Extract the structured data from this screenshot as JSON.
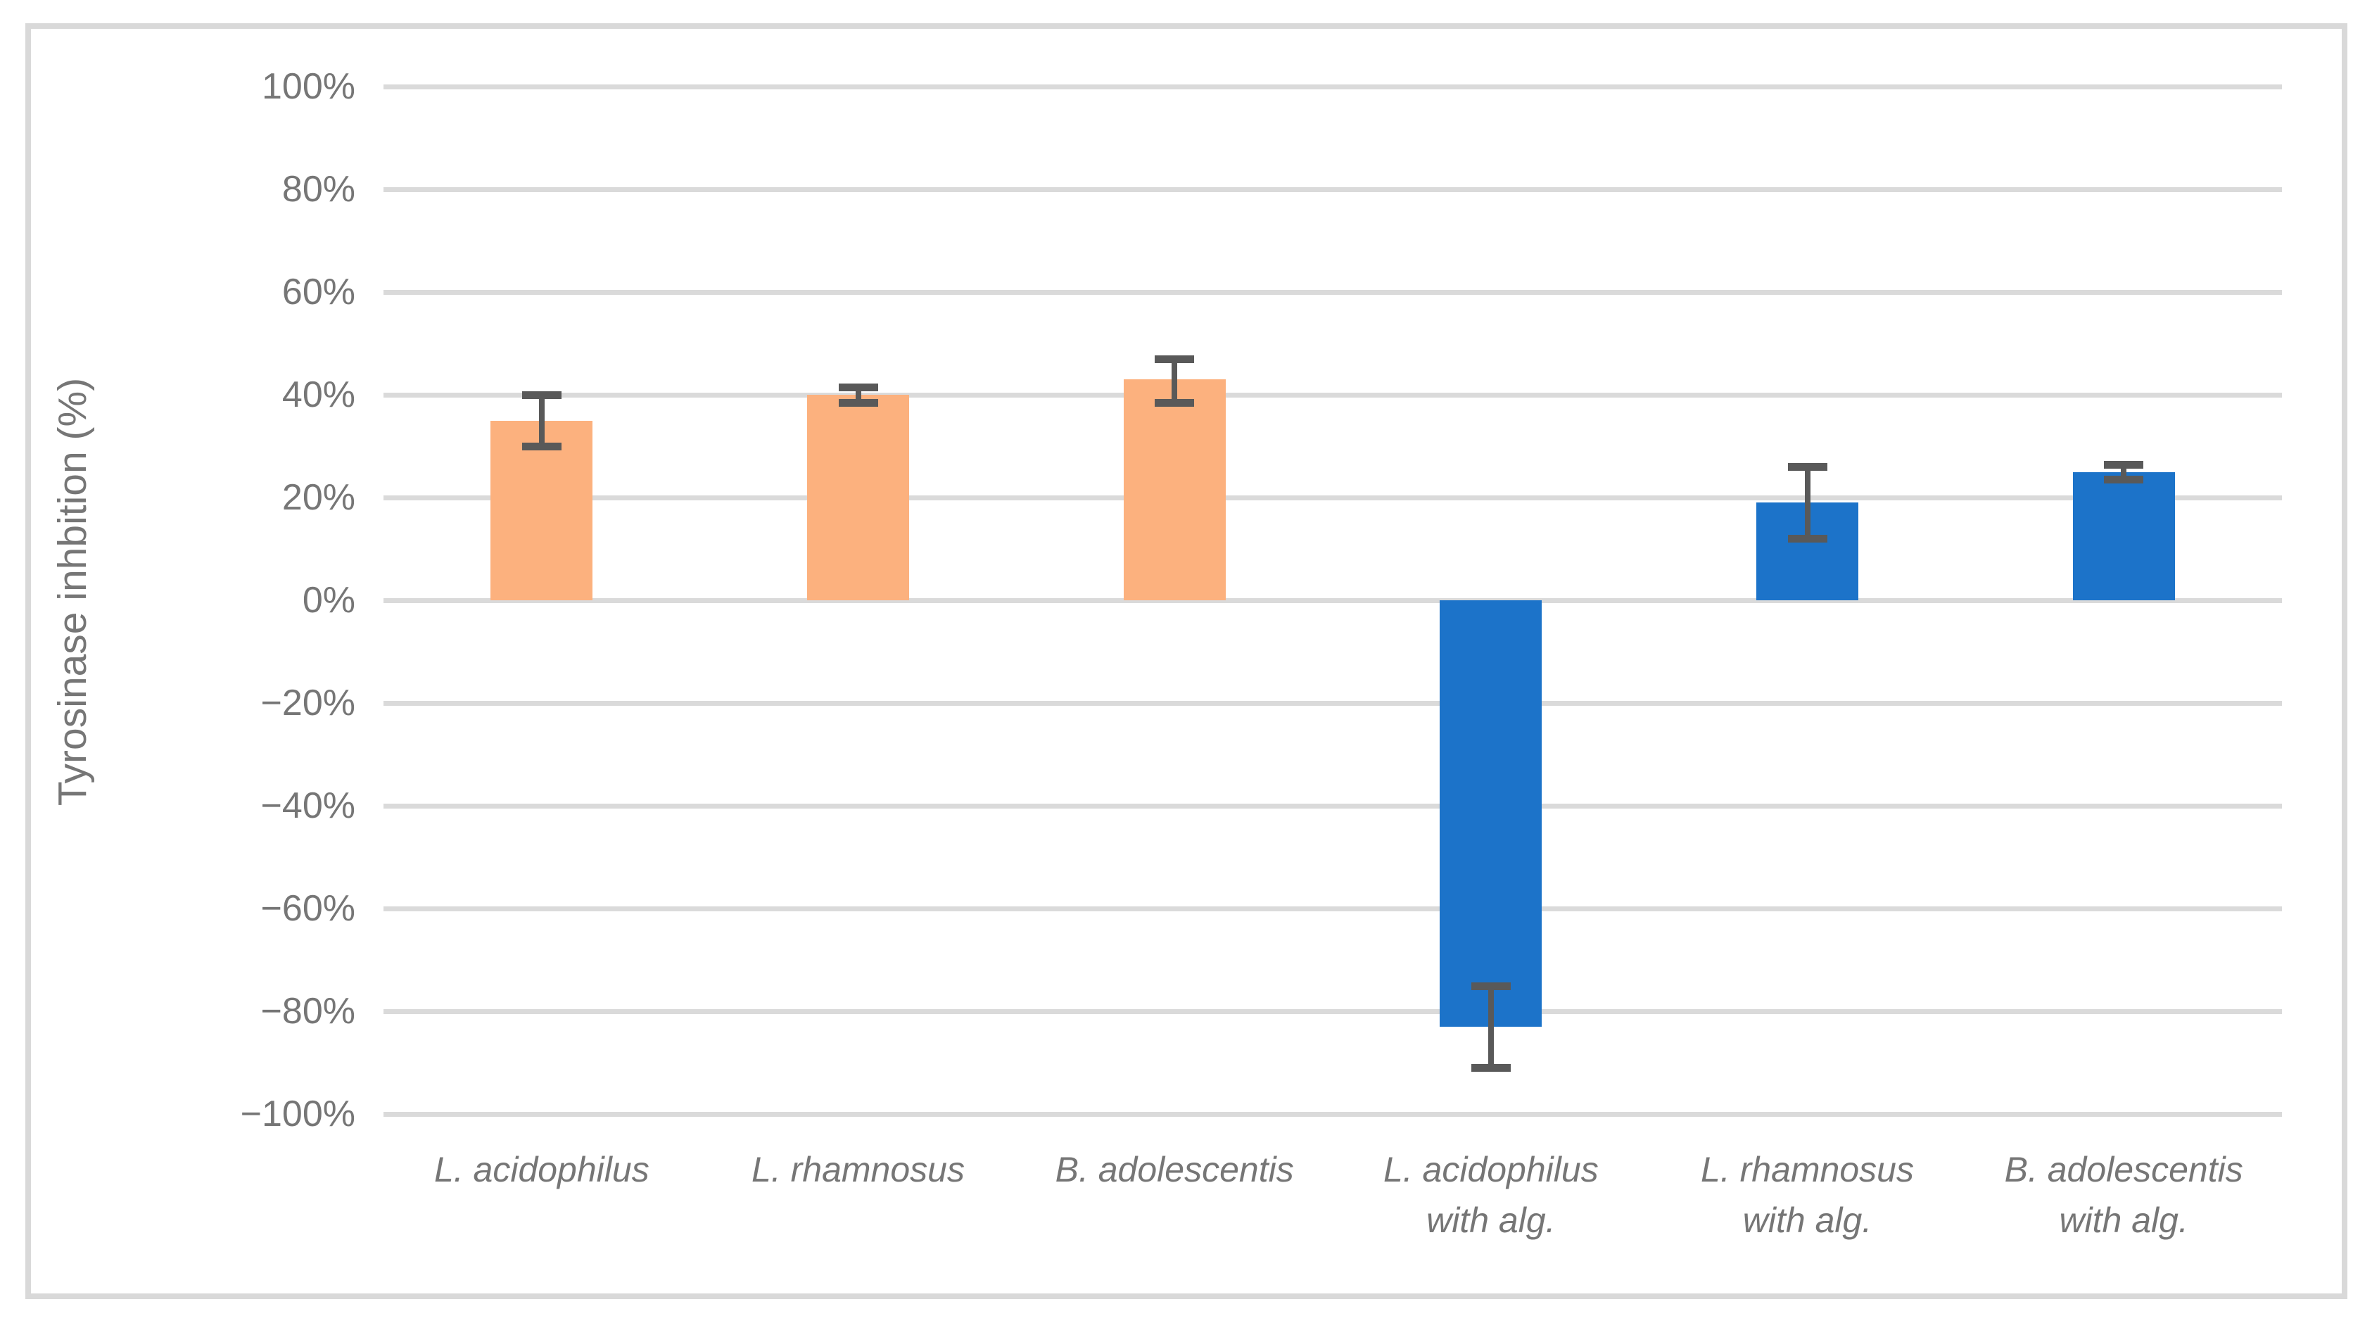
{
  "chart_data": {
    "type": "bar",
    "title": "",
    "xlabel": "",
    "ylabel": "Tyrosinase inhbition (%)",
    "ylim": [
      -100,
      100
    ],
    "ytick_step": 20,
    "yticks": [
      {
        "value": 100,
        "label": "100%"
      },
      {
        "value": 80,
        "label": "80%"
      },
      {
        "value": 60,
        "label": "60%"
      },
      {
        "value": 40,
        "label": "40%"
      },
      {
        "value": 20,
        "label": "20%"
      },
      {
        "value": 0,
        "label": "0%"
      },
      {
        "value": -20,
        "label": "−20%"
      },
      {
        "value": -40,
        "label": "−40%"
      },
      {
        "value": -60,
        "label": "−60%"
      },
      {
        "value": -80,
        "label": "−80%"
      },
      {
        "value": -100,
        "label": "−100%"
      }
    ],
    "grid": true,
    "legend": null,
    "bars": [
      {
        "category_lines": [
          "L. acidophilus"
        ],
        "value": 35,
        "error_low": 30,
        "error_high": 40,
        "color": "#FCB17E"
      },
      {
        "category_lines": [
          "L. rhamnosus"
        ],
        "value": 40,
        "error_low": 38.5,
        "error_high": 41.5,
        "color": "#FCB17E"
      },
      {
        "category_lines": [
          "B. adolescentis"
        ],
        "value": 43,
        "error_low": 38.5,
        "error_high": 47,
        "color": "#FCB17E"
      },
      {
        "category_lines": [
          "L. acidophilus",
          "with alg."
        ],
        "value": -83,
        "error_low": -91,
        "error_high": -75,
        "color": "#1C73C9"
      },
      {
        "category_lines": [
          "L. rhamnosus",
          "with alg."
        ],
        "value": 19,
        "error_low": 12,
        "error_high": 26,
        "color": "#1C73C9"
      },
      {
        "category_lines": [
          "B. adolescentis",
          "with alg."
        ],
        "value": 25,
        "error_low": 23.5,
        "error_high": 26.5,
        "color": "#1C73C9"
      }
    ],
    "colors": {
      "series_without_alginate": "#FCB17E",
      "series_with_alginate": "#1C73C9",
      "gridline": "#DADADA",
      "frame_border": "#D9D9D9",
      "axis_text": "#767676",
      "error_bar": "#595959"
    }
  }
}
